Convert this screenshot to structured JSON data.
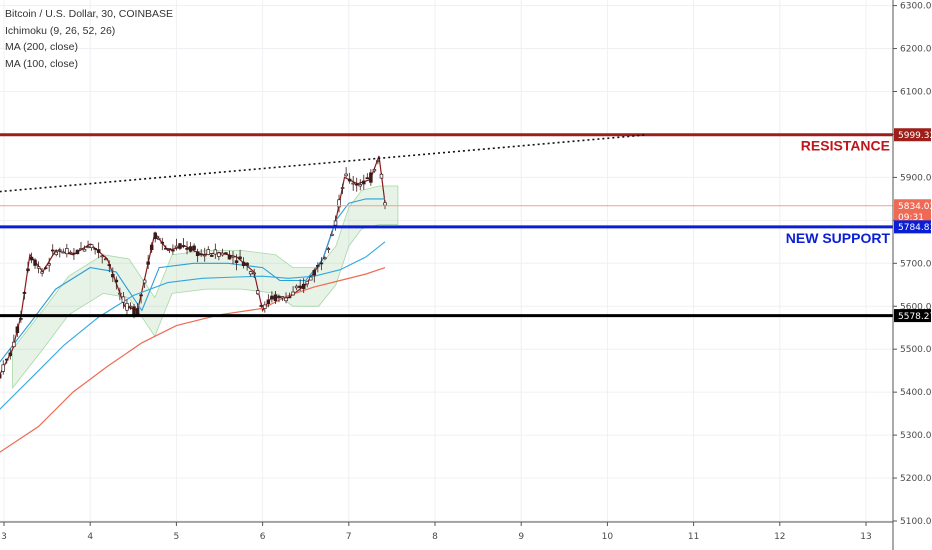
{
  "legend": {
    "symbol": "Bitcoin / U.S. Dollar, 30, COINBASE",
    "ichimoku": "Ichimoku (9, 26, 52, 26)",
    "ma200": "MA (200, close)",
    "ma100": "MA (100, close)"
  },
  "chart_data": {
    "type": "line",
    "title": "",
    "xlabel": "",
    "ylabel": "",
    "ylim": [
      5100,
      6300
    ],
    "xlim": [
      2.95,
      13.4
    ],
    "y_ticks": [
      "5100.00",
      "5200.00",
      "5300.00",
      "5400.00",
      "5500.00",
      "5600.00",
      "5700.00",
      "5800.00",
      "5900.00",
      "6000.00",
      "6100.00",
      "6200.00",
      "6300.00"
    ],
    "y_tick_values": [
      5100,
      5200,
      5300,
      5400,
      5500,
      5600,
      5700,
      5800,
      5900,
      6000,
      6100,
      6200,
      6300
    ],
    "x_ticks": [
      "3",
      "4",
      "5",
      "6",
      "7",
      "8",
      "9",
      "10",
      "11",
      "12",
      "13"
    ],
    "x_tick_values": [
      3,
      4,
      5,
      6,
      7,
      8,
      9,
      10,
      11,
      12,
      13
    ],
    "grid": true,
    "legend_position": "top-left",
    "price_tags": [
      {
        "label": "5999.32",
        "value": 5999.32,
        "color": "#9c1f1a"
      },
      {
        "label": "5834.02",
        "value": 5834.02,
        "color": "#ef6a55"
      },
      {
        "label": "09:31",
        "value": 5808,
        "color": "#ef6a55"
      },
      {
        "label": "5784.83",
        "value": 5784.83,
        "color": "#0a1ed6"
      },
      {
        "label": "5578.27",
        "value": 5578.27,
        "color": "#000000"
      }
    ],
    "horizontal_lines": [
      {
        "name": "resistance",
        "value": 5999.32,
        "color": "#9c1f1a"
      },
      {
        "name": "support",
        "value": 5784.83,
        "color": "#0a1ed6"
      },
      {
        "name": "bottom",
        "value": 5578.27,
        "color": "#000000"
      },
      {
        "name": "last-price",
        "value": 5834.02,
        "color": "#f0a090"
      }
    ],
    "trendline": {
      "x": [
        2.95,
        10.45
      ],
      "y": [
        5867,
        5999
      ]
    },
    "annotations": [
      {
        "text": "RESISTANCE",
        "value": 5999.32,
        "color": "#c0161a"
      },
      {
        "text": "NEW SUPPORT",
        "value": 5784.83,
        "color": "#0a1ed6"
      }
    ],
    "series": [
      {
        "name": "price",
        "x": [
          2.95,
          3.1,
          3.2,
          3.3,
          3.45,
          3.6,
          3.8,
          4.0,
          4.2,
          4.4,
          4.55,
          4.75,
          4.9,
          5.1,
          5.3,
          5.5,
          5.7,
          5.9,
          6.0,
          6.1,
          6.3,
          6.5,
          6.7,
          6.85,
          6.95,
          7.1,
          7.25,
          7.35,
          7.42
        ],
        "y": [
          5440,
          5500,
          5580,
          5720,
          5680,
          5730,
          5720,
          5745,
          5710,
          5600,
          5590,
          5770,
          5730,
          5740,
          5720,
          5725,
          5715,
          5680,
          5590,
          5620,
          5620,
          5650,
          5710,
          5800,
          5900,
          5885,
          5895,
          5950,
          5840
        ]
      },
      {
        "name": "ichimoku-base",
        "x": [
          2.95,
          3.3,
          3.6,
          4.0,
          4.3,
          4.6,
          4.8,
          5.2,
          5.6,
          6.0,
          6.2,
          6.5,
          6.7,
          6.85,
          7.0,
          7.2,
          7.42
        ],
        "y": [
          5470,
          5560,
          5640,
          5690,
          5680,
          5590,
          5690,
          5700,
          5700,
          5690,
          5660,
          5660,
          5710,
          5800,
          5840,
          5850,
          5850
        ]
      },
      {
        "name": "ma200",
        "x": [
          2.95,
          3.4,
          3.8,
          4.2,
          4.6,
          5.0,
          5.5,
          6.0,
          6.3,
          6.6,
          6.9,
          7.2,
          7.42
        ],
        "y": [
          5260,
          5320,
          5400,
          5460,
          5515,
          5555,
          5580,
          5595,
          5625,
          5645,
          5660,
          5675,
          5690
        ]
      },
      {
        "name": "ma100",
        "x": [
          2.95,
          3.3,
          3.7,
          4.1,
          4.5,
          4.9,
          5.3,
          5.7,
          6.0,
          6.3,
          6.6,
          6.9,
          7.2,
          7.42
        ],
        "y": [
          5360,
          5430,
          5510,
          5575,
          5625,
          5655,
          5665,
          5668,
          5670,
          5665,
          5670,
          5685,
          5715,
          5750
        ]
      }
    ]
  }
}
